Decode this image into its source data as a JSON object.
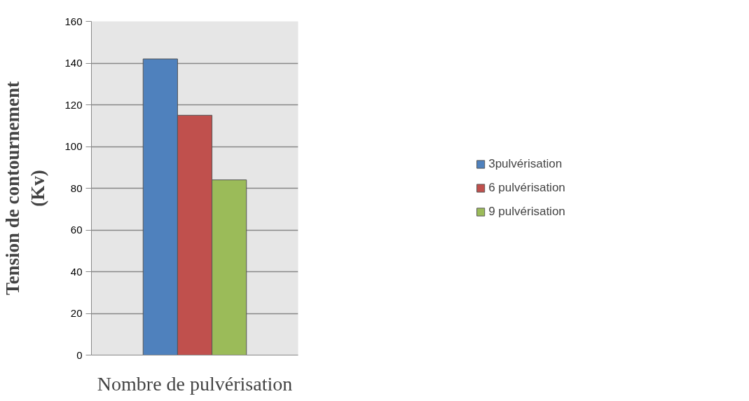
{
  "chart_data": {
    "type": "bar",
    "xlabel": "Nombre de pulvérisation",
    "ylabel": "Tension de contournement\n(Kv)",
    "categories": [
      null
    ],
    "series": [
      {
        "name": "3pulvérisation",
        "color": "#4f81bd",
        "values": [
          142
        ]
      },
      {
        "name": "6 pulvérisation",
        "color": "#c0504d",
        "values": [
          115
        ]
      },
      {
        "name": "9 pulvérisation",
        "color": "#9bbb59",
        "values": [
          84
        ]
      }
    ],
    "ylim": [
      0,
      160
    ],
    "yticks": [
      0,
      20,
      40,
      60,
      80,
      100,
      120,
      140,
      160
    ],
    "grid": "y",
    "legend": "right"
  }
}
